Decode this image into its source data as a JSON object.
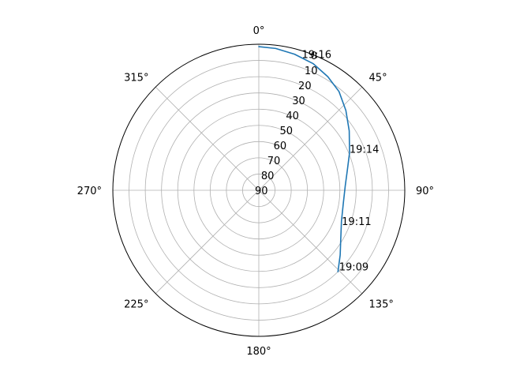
{
  "chart_data": {
    "type": "line",
    "projection": "polar",
    "theta_direction": "clockwise",
    "theta_zero": "top",
    "radial_axis": {
      "min": 0,
      "max": 90,
      "inverted": true,
      "ticks": [
        0,
        10,
        20,
        30,
        40,
        50,
        60,
        70,
        80,
        90
      ]
    },
    "angular_ticks": [
      {
        "deg": 0,
        "label": "0°"
      },
      {
        "deg": 45,
        "label": "45°"
      },
      {
        "deg": 90,
        "label": "90°"
      },
      {
        "deg": 135,
        "label": "135°"
      },
      {
        "deg": 180,
        "label": "180°"
      },
      {
        "deg": 225,
        "label": "225°"
      },
      {
        "deg": 270,
        "label": "270°"
      },
      {
        "deg": 315,
        "label": "315°"
      }
    ],
    "grid": true,
    "series": [
      {
        "color": "#1f77b4",
        "points": [
          {
            "azimuth": 135.8,
            "elevation": 20.0
          },
          {
            "azimuth": 128.5,
            "elevation": 25.9
          },
          {
            "azimuth": 120.6,
            "elevation": 31.3
          },
          {
            "azimuth": 110.5,
            "elevation": 35.6
          },
          {
            "azimuth": 98.5,
            "elevation": 37.3
          },
          {
            "azimuth": 86.8,
            "elevation": 36.6
          },
          {
            "azimuth": 77.4,
            "elevation": 34.1
          },
          {
            "azimuth": 67.6,
            "elevation": 29.5
          },
          {
            "azimuth": 56.7,
            "elevation": 23.3
          },
          {
            "azimuth": 47.5,
            "elevation": 17.2
          },
          {
            "azimuth": 39.1,
            "elevation": 11.6
          },
          {
            "azimuth": 31.3,
            "elevation": 8.1
          },
          {
            "azimuth": 23.3,
            "elevation": 5.1
          },
          {
            "azimuth": 14.7,
            "elevation": 3.3
          },
          {
            "azimuth": 6.8,
            "elevation": 2.0
          },
          {
            "azimuth": 0.0,
            "elevation": 1.5
          }
        ]
      }
    ],
    "annotations": [
      {
        "label": "19:09",
        "azimuth": 135.0,
        "elevation": 20.0
      },
      {
        "label": "19:11",
        "azimuth": 112.8,
        "elevation": 34.5
      },
      {
        "label": "19:14",
        "azimuth": 67.5,
        "elevation": 29.5
      },
      {
        "label": "19:16",
        "azimuth": 18.0,
        "elevation": 4.2
      }
    ]
  }
}
